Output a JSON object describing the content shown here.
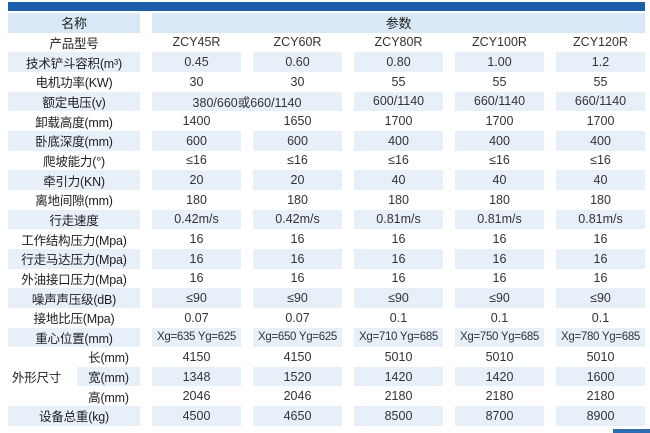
{
  "theme": {
    "top_bar_color": "#1b5ea9",
    "accent_color": "#2e6cb0",
    "stripe_color": "#e7f0f9",
    "header_fill_color": "#d9e8f6"
  },
  "table": {
    "header": {
      "name_label": "名称",
      "params_label": "参数"
    },
    "dimension_group_label": "外形尺寸",
    "rows": [
      {
        "label": "产品型号",
        "values": [
          "ZCY45R",
          "ZCY60R",
          "ZCY80R",
          "ZCY100R",
          "ZCY120R"
        ]
      },
      {
        "label": "技术铲斗容积(m³)",
        "values": [
          "0.45",
          "0.60",
          "0.80",
          "1.00",
          "1.2"
        ]
      },
      {
        "label": "电机功率(KW)",
        "values": [
          "30",
          "30",
          "55",
          "55",
          "55"
        ]
      },
      {
        "label": "额定电压(v)",
        "span_first": 2,
        "values": [
          "380/660或660/1140",
          "600/1140",
          "660/1140",
          "660/1140"
        ]
      },
      {
        "label": "卸载高度(mm)",
        "values": [
          "1400",
          "1650",
          "1700",
          "1700",
          "1700"
        ]
      },
      {
        "label": "卧底深度(mm)",
        "values": [
          "600",
          "600",
          "400",
          "400",
          "400"
        ]
      },
      {
        "label": "爬坡能力(°)",
        "values": [
          "≤16",
          "≤16",
          "≤16",
          "≤16",
          "≤16"
        ]
      },
      {
        "label": "牵引力(KN)",
        "values": [
          "20",
          "20",
          "40",
          "40",
          "40"
        ]
      },
      {
        "label": "离地间隙(mm)",
        "values": [
          "180",
          "180",
          "180",
          "180",
          "180"
        ]
      },
      {
        "label": "行走速度",
        "values": [
          "0.42m/s",
          "0.42m/s",
          "0.81m/s",
          "0.81m/s",
          "0.81m/s"
        ]
      },
      {
        "label": "工作结构压力(Mpa)",
        "values": [
          "16",
          "16",
          "16",
          "16",
          "16"
        ]
      },
      {
        "label": "行走马达压力(Mpa)",
        "values": [
          "16",
          "16",
          "16",
          "16",
          "16"
        ]
      },
      {
        "label": "外油接口压力(Mpa)",
        "values": [
          "16",
          "16",
          "16",
          "16",
          "16"
        ]
      },
      {
        "label": "噪声声压级(dB)",
        "values": [
          "≤90",
          "≤90",
          "≤90",
          "≤90",
          "≤90"
        ]
      },
      {
        "label": "接地比压(Mpa)",
        "values": [
          "0.07",
          "0.07",
          "0.1",
          "0.1",
          "0.1"
        ]
      },
      {
        "label": "重心位置(mm)",
        "small": true,
        "values": [
          "Xg=635 Yg=625",
          "Xg=650 Yg=625",
          "Xg=710 Yg=685",
          "Xg=750 Yg=685",
          "Xg=780 Yg=685"
        ]
      },
      {
        "label": "长(mm)",
        "sub": true,
        "group": "外形尺寸",
        "values": [
          "4150",
          "4150",
          "5010",
          "5010",
          "5010"
        ]
      },
      {
        "label": "宽(mm)",
        "sub": true,
        "values": [
          "1348",
          "1520",
          "1420",
          "1420",
          "1600"
        ]
      },
      {
        "label": "高(mm)",
        "sub": true,
        "values": [
          "2046",
          "2046",
          "2180",
          "2180",
          "2180"
        ]
      },
      {
        "label": "设备总重(kg)",
        "values": [
          "4500",
          "4650",
          "8500",
          "8700",
          "8900"
        ]
      }
    ]
  }
}
